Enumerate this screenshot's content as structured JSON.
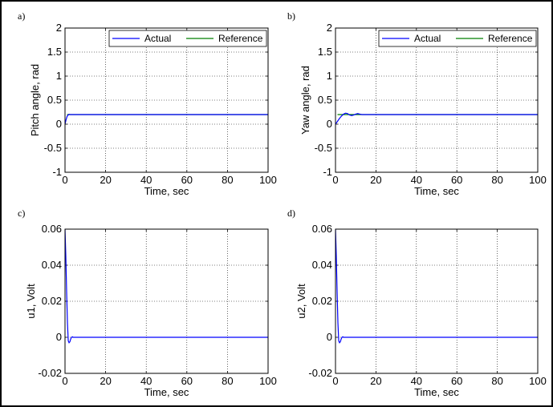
{
  "chart_data": [
    {
      "panel": "a)",
      "type": "line",
      "xlabel": "Time, sec",
      "ylabel": "Pitch angle, rad",
      "xlim": [
        0,
        100
      ],
      "ylim": [
        -1,
        2
      ],
      "xticks": [
        0,
        20,
        40,
        60,
        80,
        100
      ],
      "yticks": [
        -1,
        -0.5,
        0,
        0.5,
        1,
        1.5,
        2
      ],
      "ytick_labels": [
        "-1",
        "-0.5",
        "0",
        "0.5",
        "1",
        "1.5",
        "2"
      ],
      "grid": true,
      "legend": "top-right",
      "series": [
        {
          "name": "Actual",
          "color": "#0000ff",
          "x": [
            0,
            0.5,
            1,
            1.5,
            2,
            2.5,
            3,
            100
          ],
          "y": [
            0,
            0.09,
            0.16,
            0.19,
            0.205,
            0.2,
            0.2,
            0.2
          ]
        },
        {
          "name": "Reference",
          "color": "#007f00",
          "x": [
            1,
            100
          ],
          "y": [
            0.2,
            0.2
          ]
        }
      ]
    },
    {
      "panel": "b)",
      "type": "line",
      "xlabel": "Time, sec",
      "ylabel": "Yaw angle, rad",
      "xlim": [
        0,
        100
      ],
      "ylim": [
        -1,
        2
      ],
      "xticks": [
        0,
        20,
        40,
        60,
        80,
        100
      ],
      "yticks": [
        -1,
        -0.5,
        0,
        0.5,
        1,
        1.5,
        2
      ],
      "ytick_labels": [
        "-1",
        "-0.5",
        "0",
        "0.5",
        "1",
        "1.5",
        "2"
      ],
      "grid": true,
      "legend": "top-right",
      "series": [
        {
          "name": "Actual",
          "color": "#0000ff",
          "x": [
            0,
            1,
            2,
            3,
            4,
            5,
            6,
            7,
            8,
            9,
            10,
            11,
            12,
            13,
            100
          ],
          "y": [
            0,
            0.06,
            0.12,
            0.17,
            0.21,
            0.23,
            0.22,
            0.19,
            0.18,
            0.19,
            0.21,
            0.22,
            0.21,
            0.2,
            0.2
          ]
        },
        {
          "name": "Reference",
          "color": "#007f00",
          "x": [
            1,
            100
          ],
          "y": [
            0.2,
            0.2
          ]
        }
      ]
    },
    {
      "panel": "c)",
      "type": "line",
      "xlabel": "Time, sec",
      "ylabel": "u1, Volt",
      "xlim": [
        0,
        100
      ],
      "ylim": [
        -0.02,
        0.06
      ],
      "xticks": [
        0,
        20,
        40,
        60,
        80,
        100
      ],
      "yticks": [
        -0.02,
        0,
        0.02,
        0.04,
        0.06
      ],
      "ytick_labels": [
        "-0.02",
        "0",
        "0.02",
        "0.04",
        "0.06"
      ],
      "grid": true,
      "series": [
        {
          "color": "#0000ff",
          "x": [
            0,
            0.4,
            0.8,
            1.2,
            1.6,
            2.0,
            2.4,
            2.8,
            3.2,
            3.6,
            4.0,
            5,
            6,
            8,
            10,
            12,
            14,
            16,
            18,
            20,
            25,
            30,
            35,
            40,
            45,
            50,
            55,
            60,
            65,
            70,
            75,
            80,
            85,
            90,
            95,
            100
          ],
          "y": [
            0.06,
            0.045,
            0.025,
            0.008,
            -0.002,
            -0.003,
            -0.0025,
            -0.001,
            0.0,
            0.0003,
            0.0,
            0.0,
            0.0,
            0.0,
            0.0,
            0.0,
            0.0,
            0.0,
            0.0,
            0.0,
            0.0,
            0.0,
            0.0,
            0.0,
            0.0,
            0.0,
            0.0,
            0.0,
            0.0,
            0.0,
            0.0,
            0.0,
            0.0,
            0.0,
            0.0,
            0.0
          ]
        }
      ]
    },
    {
      "panel": "d)",
      "type": "line",
      "xlabel": "Time, sec",
      "ylabel": "u2, Volt",
      "xlim": [
        0,
        100
      ],
      "ylim": [
        -0.02,
        0.06
      ],
      "xticks": [
        0,
        20,
        40,
        60,
        80,
        100
      ],
      "yticks": [
        -0.02,
        0,
        0.02,
        0.04,
        0.06
      ],
      "ytick_labels": [
        "-0.02",
        "0",
        "0.02",
        "0.04",
        "0.06"
      ],
      "grid": true,
      "series": [
        {
          "color": "#0000ff",
          "x": [
            0,
            0.4,
            0.8,
            1.2,
            1.6,
            2.0,
            2.4,
            2.8,
            3.2,
            3.6,
            4.0,
            5,
            6,
            8,
            10,
            12,
            14,
            16,
            18,
            20,
            25,
            30,
            35,
            40,
            45,
            50,
            55,
            60,
            65,
            70,
            75,
            80,
            85,
            90,
            95,
            100
          ],
          "y": [
            0.06,
            0.045,
            0.025,
            0.008,
            -0.002,
            -0.003,
            -0.0025,
            -0.001,
            0.0,
            0.0003,
            0.0,
            0.0,
            0.0,
            0.0,
            0.0,
            0.0,
            0.0,
            0.0,
            0.0,
            0.0,
            0.0,
            0.0,
            0.0,
            0.0,
            0.0,
            0.0,
            0.0,
            0.0,
            0.0,
            0.0,
            0.0,
            0.0,
            0.0,
            0.0,
            0.0,
            0.0
          ]
        }
      ]
    }
  ]
}
